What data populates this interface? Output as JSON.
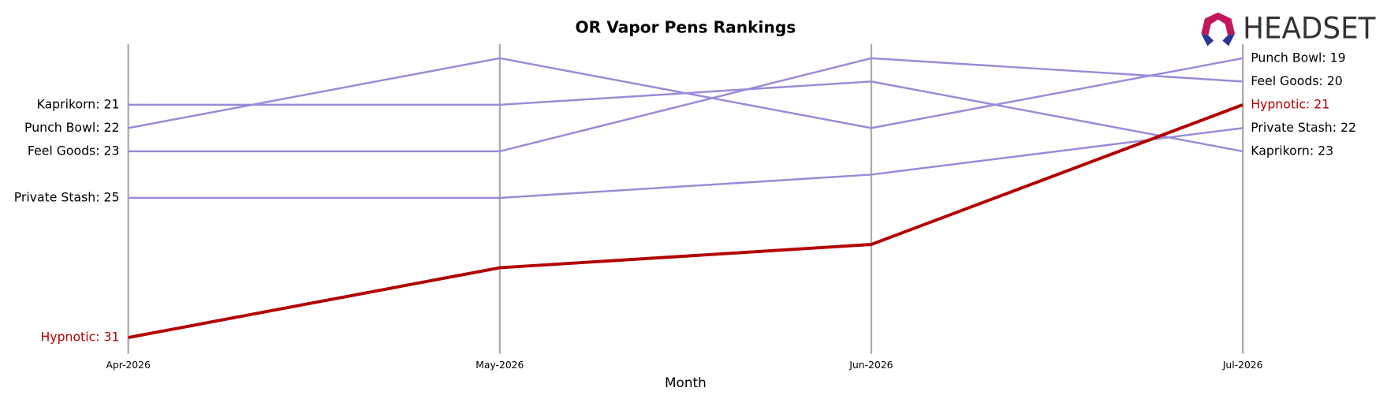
{
  "chart_data": {
    "type": "bump",
    "title": "OR Vapor Pens Rankings",
    "x_label": "Month",
    "logo": "HEADSET",
    "categories": [
      "Apr-2026",
      "May-2026",
      "Jun-2026",
      "Jul-2026"
    ],
    "ylim": [
      31.7,
      18.4
    ],
    "inverted": true,
    "series": [
      {
        "name": "Kaprikorn",
        "color": "#9b8ad8",
        "values": [
          21,
          21,
          20,
          23
        ],
        "value_labels": [
          "Kaprikorn: 21",
          null,
          null,
          "Kaprikorn: 23"
        ]
      },
      {
        "name": "Punch Bowl",
        "color": "#9b8ad8",
        "values": [
          22,
          19,
          22,
          19
        ],
        "value_labels": [
          "Punch Bowl: 22",
          null,
          null,
          "Punch Bowl: 19"
        ]
      },
      {
        "name": "Feel Goods",
        "color": "#9b8ad8",
        "values": [
          23,
          23,
          19,
          20
        ],
        "value_labels": [
          "Feel Goods: 23",
          null,
          null,
          "Feel Goods: 20"
        ]
      },
      {
        "name": "Private Stash",
        "color": "#9b8ad8",
        "values": [
          25,
          25,
          24,
          22
        ],
        "value_labels": [
          "Private Stash: 25",
          null,
          null,
          "Private Stash: 22"
        ]
      },
      {
        "name": "Hypnotic",
        "color": "#b30000",
        "highlight": true,
        "values": [
          31,
          28,
          27,
          21
        ],
        "value_labels": [
          "Hypnotic: 31",
          null,
          null,
          "Hypnotic: 21"
        ]
      }
    ]
  }
}
